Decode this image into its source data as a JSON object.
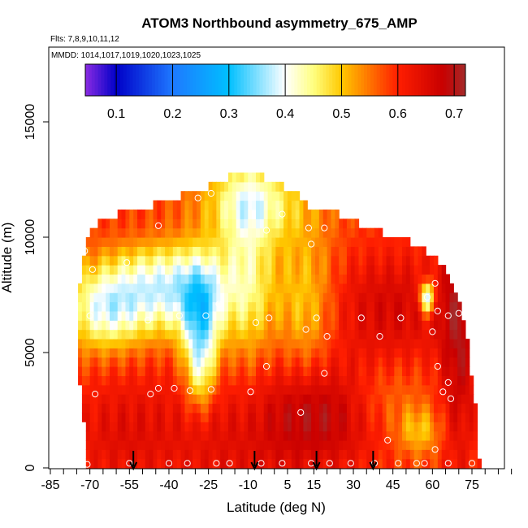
{
  "chart_data": {
    "type": "heatmap",
    "title": "ATOM3 Northbound asymmetry_675_AMP",
    "flights_label": "Flts: 7,8,9,10,11,12",
    "dates_label": "MMDD: 1014,1017,1019,1020,1023,1025",
    "xlabel": "Latitude (deg N)",
    "ylabel": "Altitude (m)",
    "xlim": [
      -85,
      92
    ],
    "ylim": [
      0,
      17500
    ],
    "x_ticks": [
      -85,
      -70,
      -55,
      -40,
      -25,
      -10,
      5,
      15,
      30,
      45,
      60,
      75
    ],
    "x_minor_ticks": [
      -80,
      -75,
      -65,
      -60,
      -50,
      -45,
      -35,
      -30,
      -20,
      -15,
      -5,
      0,
      10,
      20,
      25,
      35,
      40,
      50,
      55,
      65,
      70,
      80,
      85,
      90
    ],
    "y_ticks": [
      0,
      5000,
      10000,
      15000
    ],
    "colorbar": {
      "range": [
        0.045,
        0.72
      ],
      "ticks": [
        0.1,
        0.2,
        0.3,
        0.4,
        0.5,
        0.6,
        0.7
      ],
      "tick_labels": [
        "0.1",
        "0.2",
        "0.3",
        "0.4",
        "0.5",
        "0.6",
        "0.7"
      ],
      "stops": [
        {
          "v": 0.045,
          "color": "#8a2be2"
        },
        {
          "v": 0.1,
          "color": "#0000c8"
        },
        {
          "v": 0.2,
          "color": "#1e78ff"
        },
        {
          "v": 0.3,
          "color": "#00bfff"
        },
        {
          "v": 0.4,
          "color": "#ffffff"
        },
        {
          "v": 0.45,
          "color": "#ffff80"
        },
        {
          "v": 0.5,
          "color": "#ffc800"
        },
        {
          "v": 0.6,
          "color": "#ff1e00"
        },
        {
          "v": 0.68,
          "color": "#c80000"
        },
        {
          "v": 0.72,
          "color": "#a52a2a"
        }
      ]
    },
    "field": {
      "lat_bin_deg": 1.5,
      "alt_bin_m": 400,
      "envelope_top_m": [
        {
          "lat": -72,
          "alt": 9400
        },
        {
          "lat": -68,
          "alt": 10800
        },
        {
          "lat": -60,
          "alt": 11000
        },
        {
          "lat": -48,
          "alt": 11300
        },
        {
          "lat": -38,
          "alt": 11700
        },
        {
          "lat": -26,
          "alt": 12100
        },
        {
          "lat": -18,
          "alt": 12600
        },
        {
          "lat": -4,
          "alt": 12600
        },
        {
          "lat": 6,
          "alt": 12100
        },
        {
          "lat": 14,
          "alt": 11300
        },
        {
          "lat": 24,
          "alt": 11000
        },
        {
          "lat": 36,
          "alt": 10400
        },
        {
          "lat": 50,
          "alt": 9900
        },
        {
          "lat": 62,
          "alt": 9100
        },
        {
          "lat": 66,
          "alt": 8500
        },
        {
          "lat": 70,
          "alt": 7200
        },
        {
          "lat": 73,
          "alt": 6000
        }
      ],
      "envelope_lat_bounds": [
        {
          "alt": 0,
          "south": -72,
          "north": 78
        },
        {
          "alt": 1500,
          "south": -72,
          "north": 77
        },
        {
          "alt": 3000,
          "south": -73,
          "north": 76
        },
        {
          "alt": 4500,
          "south": -75,
          "north": 74
        },
        {
          "alt": 6000,
          "south": -75,
          "north": 73
        },
        {
          "alt": 7500,
          "south": -74,
          "north": 72
        },
        {
          "alt": 9000,
          "south": -73,
          "north": 68
        },
        {
          "alt": 10500,
          "south": -69,
          "north": 55
        },
        {
          "alt": 12500,
          "south": -35,
          "north": 8
        }
      ],
      "base_value": 0.58,
      "features": [
        {
          "lat": -40,
          "alt": 7800,
          "slat": 18,
          "salt": 1400,
          "amp": -0.2
        },
        {
          "lat": -65,
          "alt": 6800,
          "slat": 10,
          "salt": 1200,
          "amp": -0.14
        },
        {
          "lat": -28,
          "alt": 6200,
          "slat": 5,
          "salt": 1700,
          "amp": -0.18
        },
        {
          "lat": -28,
          "alt": 4000,
          "slat": 4,
          "salt": 1200,
          "amp": -0.1
        },
        {
          "lat": -10,
          "alt": 8500,
          "slat": 7,
          "salt": 3500,
          "amp": -0.1
        },
        {
          "lat": 12,
          "alt": 7000,
          "slat": 8,
          "salt": 2500,
          "amp": -0.09
        },
        {
          "lat": -8,
          "alt": 11500,
          "slat": 14,
          "salt": 1200,
          "amp": -0.13
        },
        {
          "lat": -50,
          "alt": 10300,
          "slat": 18,
          "salt": 800,
          "amp": 0.02
        },
        {
          "lat": -10,
          "alt": 1500,
          "slat": 28,
          "salt": 2500,
          "amp": 0.07
        },
        {
          "lat": -60,
          "alt": 1500,
          "slat": 14,
          "salt": 1800,
          "amp": 0.05
        },
        {
          "lat": 20,
          "alt": 2500,
          "slat": 15,
          "salt": 1500,
          "amp": 0.09
        },
        {
          "lat": 45,
          "alt": 7000,
          "slat": 18,
          "salt": 1700,
          "amp": 0.08
        },
        {
          "lat": 70,
          "alt": 5500,
          "slat": 5,
          "salt": 4000,
          "amp": 0.1
        },
        {
          "lat": 40,
          "alt": 3000,
          "slat": 12,
          "salt": 1200,
          "amp": -0.05
        },
        {
          "lat": 55,
          "alt": 1600,
          "slat": 6,
          "salt": 700,
          "amp": -0.08
        },
        {
          "lat": 58,
          "alt": 7400,
          "slat": 2,
          "salt": 500,
          "amp": -0.25
        }
      ]
    },
    "sample_points": [
      [
        -71,
        150
      ],
      [
        -68,
        3200
      ],
      [
        -47,
        3200
      ],
      [
        -44,
        3450
      ],
      [
        -38,
        3450
      ],
      [
        -32,
        3350
      ],
      [
        -24,
        3400
      ],
      [
        -9,
        3300
      ],
      [
        -3,
        4400
      ],
      [
        10,
        2400
      ],
      [
        19,
        4100
      ],
      [
        -71,
        10500
      ],
      [
        -72,
        9400
      ],
      [
        -69,
        8600
      ],
      [
        -56,
        8900
      ],
      [
        -44,
        10500
      ],
      [
        -29,
        11700
      ],
      [
        -24,
        11900
      ],
      [
        -3,
        10300
      ],
      [
        3,
        11000
      ],
      [
        13,
        10400
      ],
      [
        14,
        9700
      ],
      [
        19,
        10400
      ],
      [
        -70,
        6600
      ],
      [
        -48,
        6400
      ],
      [
        -36,
        6600
      ],
      [
        -26,
        6600
      ],
      [
        -21,
        7100
      ],
      [
        -7,
        6300
      ],
      [
        -2,
        6500
      ],
      [
        12,
        6000
      ],
      [
        16,
        6500
      ],
      [
        20,
        5700
      ],
      [
        33,
        6500
      ],
      [
        40,
        5700
      ],
      [
        48,
        6500
      ],
      [
        60,
        5900
      ],
      [
        58,
        7400
      ],
      [
        61,
        8000
      ],
      [
        66,
        6600
      ],
      [
        70,
        6700
      ],
      [
        -55,
        200
      ],
      [
        -40,
        200
      ],
      [
        -33,
        200
      ],
      [
        -22,
        200
      ],
      [
        -17,
        200
      ],
      [
        -5,
        200
      ],
      [
        3,
        200
      ],
      [
        14,
        200
      ],
      [
        21,
        200
      ],
      [
        29,
        200
      ],
      [
        38,
        200
      ],
      [
        47,
        200
      ],
      [
        54,
        200
      ],
      [
        61,
        800
      ],
      [
        62,
        6800
      ],
      [
        62,
        4400
      ],
      [
        66,
        3700
      ],
      [
        64,
        3300
      ],
      [
        67,
        3000
      ],
      [
        43,
        1200
      ],
      [
        57,
        200
      ],
      [
        66,
        200
      ],
      [
        75,
        200
      ]
    ],
    "arrows_lat": [
      -53.5,
      -7.5,
      16,
      37.5
    ]
  }
}
